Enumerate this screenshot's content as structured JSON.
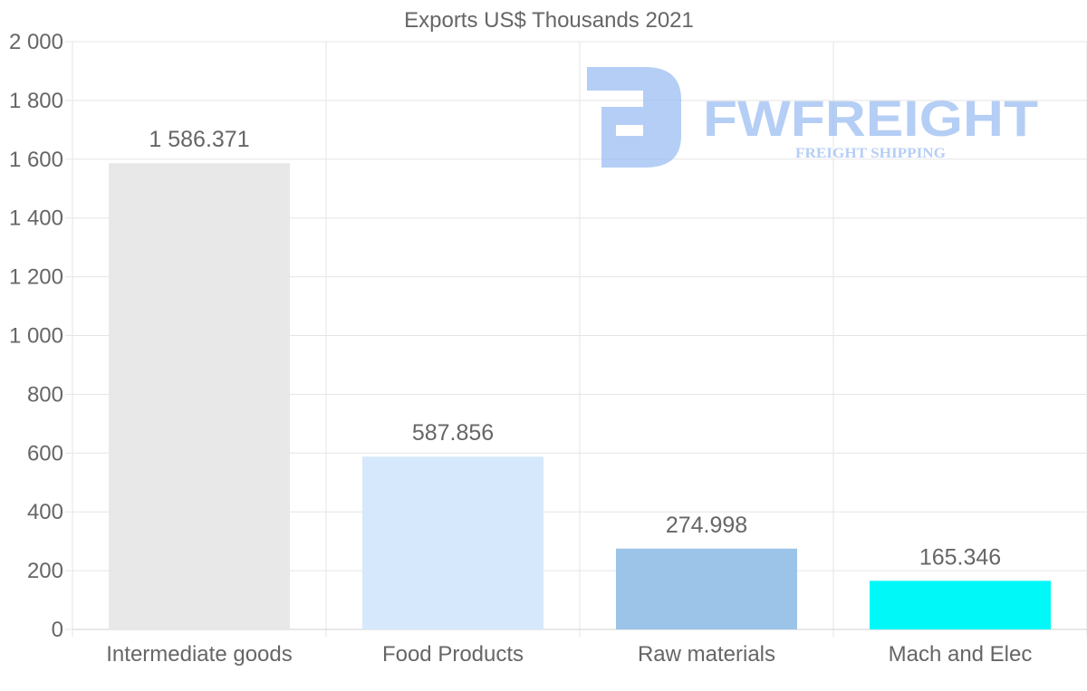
{
  "chart_data": {
    "type": "bar",
    "title": "Exports US$ Thousands 2021",
    "categories": [
      "Intermediate goods",
      "Food Products",
      "Raw materials",
      "Mach and Elec"
    ],
    "values": [
      1586.371,
      587.856,
      274.998,
      165.346
    ],
    "value_labels": [
      "1 586.371",
      "587.856",
      "274.998",
      "165.346"
    ],
    "bar_colors": [
      "#e8e8e8",
      "#d6e8fb",
      "#9cc4e8",
      "#00f8f8"
    ],
    "ylim": [
      0,
      2000
    ],
    "yticks": [
      0,
      200,
      400,
      600,
      800,
      1000,
      1200,
      1400,
      1600,
      1800,
      2000
    ],
    "ytick_labels": [
      "0",
      "200",
      "400",
      "600",
      "800",
      "1 000",
      "1 200",
      "1 400",
      "1 600",
      "1 800",
      "2 000"
    ],
    "xlabel": "",
    "ylabel": "",
    "grid": true,
    "legend": "none"
  },
  "watermark": {
    "brand": "FWFREIGHT",
    "tagline": "FREIGHT SHIPPING",
    "color": "#9dbef2"
  }
}
